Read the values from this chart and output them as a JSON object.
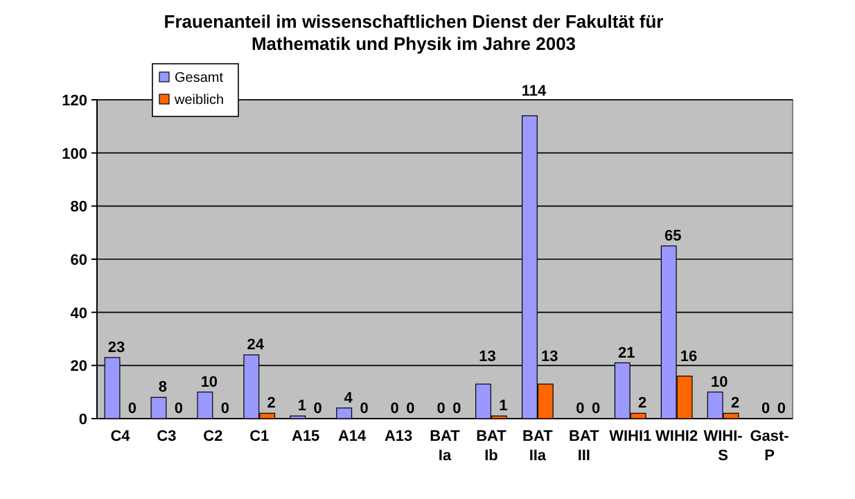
{
  "chart_data": {
    "type": "bar",
    "title": "Frauenanteil im wissenschaftlichen Dienst der Fakultät für Mathematik und Physik im Jahre 2003",
    "categories": [
      "C4",
      "C3",
      "C2",
      "C1",
      "A15",
      "A14",
      "A13",
      "BAT Ia",
      "BAT Ib",
      "BAT IIa",
      "BAT III",
      "WIHI1",
      "WIHI2",
      "WIHI-S",
      "Gast-P"
    ],
    "series": [
      {
        "name": "Gesamt",
        "color": "#9999ff",
        "values": [
          23,
          8,
          10,
          24,
          1,
          4,
          0,
          0,
          13,
          114,
          0,
          21,
          65,
          10,
          0
        ]
      },
      {
        "name": "weiblich",
        "color": "#ff6600",
        "values": [
          0,
          0,
          0,
          2,
          0,
          0,
          0,
          0,
          1,
          13,
          0,
          2,
          16,
          2,
          0
        ]
      }
    ],
    "ylim": [
      0,
      120
    ],
    "yticks": [
      0,
      20,
      40,
      60,
      80,
      100,
      120
    ],
    "grid": "y",
    "legend": "top left",
    "data_labels": true
  }
}
